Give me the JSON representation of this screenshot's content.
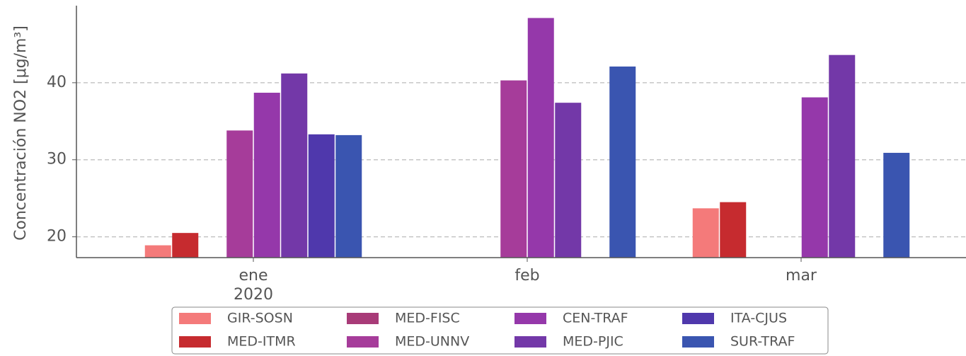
{
  "chart_data": {
    "type": "bar",
    "ylabel": "Concentración NO2 [μg/m³]",
    "categories": [
      "ene",
      "feb",
      "mar"
    ],
    "year": "2020",
    "series": [
      {
        "name": "GIR-SOSN",
        "color": "#f47a7a",
        "values": [
          18.9,
          null,
          23.7
        ]
      },
      {
        "name": "MED-ITMR",
        "color": "#c62b2f",
        "values": [
          20.5,
          null,
          24.5
        ]
      },
      {
        "name": "MED-FISC",
        "color": "#a83b78",
        "values": [
          null,
          null,
          null
        ]
      },
      {
        "name": "MED-UNNV",
        "color": "#a63c9a",
        "values": [
          33.8,
          40.3,
          null
        ]
      },
      {
        "name": "CEN-TRAF",
        "color": "#9538aa",
        "values": [
          38.7,
          48.4,
          38.1
        ]
      },
      {
        "name": "MED-PJIC",
        "color": "#7338a8",
        "values": [
          41.2,
          37.4,
          43.6
        ]
      },
      {
        "name": "ITA-CJUS",
        "color": "#4f38ac",
        "values": [
          33.3,
          null,
          null
        ]
      },
      {
        "name": "SUR-TRAF",
        "color": "#3a55b0",
        "values": [
          33.2,
          42.1,
          30.9
        ]
      }
    ],
    "ylim": [
      17.3,
      50
    ],
    "yticks": [
      20,
      30,
      40
    ],
    "grid": true,
    "legend": "bottom"
  }
}
